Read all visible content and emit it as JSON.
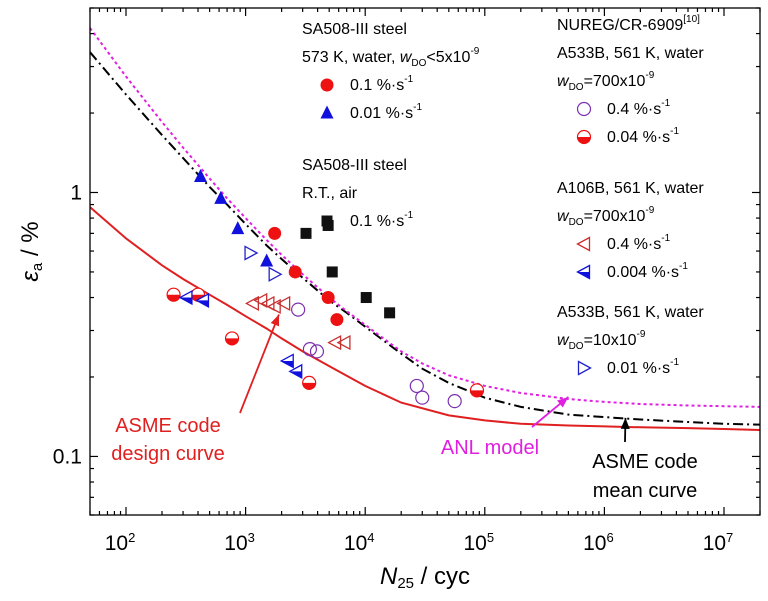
{
  "chart_data": {
    "type": "scatter",
    "xscale": "log",
    "yscale": "log",
    "xlim": [
      50,
      20000000
    ],
    "ylim": [
      0.06,
      5
    ],
    "xlabel": {
      "main": "N",
      "sub": "25",
      "tail": " / cyc"
    },
    "ylabel": {
      "main": "ε",
      "sub": "a",
      "tail": " / %"
    },
    "xticks": [
      {
        "value": 100,
        "base": "10",
        "exp": "2"
      },
      {
        "value": 1000,
        "base": "10",
        "exp": "3"
      },
      {
        "value": 10000,
        "base": "10",
        "exp": "4"
      },
      {
        "value": 100000,
        "base": "10",
        "exp": "5"
      },
      {
        "value": 1000000,
        "base": "10",
        "exp": "6"
      },
      {
        "value": 10000000,
        "base": "10",
        "exp": "7"
      }
    ],
    "yticks": [
      {
        "value": 0.1,
        "label": "0.1"
      },
      {
        "value": 1,
        "label": "1"
      }
    ],
    "curves": [
      {
        "label": "ASME code design curve",
        "color": "#e02020",
        "style": "solid",
        "x": [
          50,
          100,
          200,
          300,
          500,
          700,
          1000,
          1500,
          2000,
          3000,
          5000,
          10000,
          20000,
          50000,
          100000,
          200000,
          500000,
          1000000,
          2000000,
          5000000,
          10000000,
          20000000
        ],
        "y": [
          0.88,
          0.67,
          0.53,
          0.47,
          0.41,
          0.375,
          0.34,
          0.305,
          0.28,
          0.25,
          0.22,
          0.185,
          0.16,
          0.143,
          0.137,
          0.133,
          0.131,
          0.13,
          0.129,
          0.128,
          0.127,
          0.126
        ]
      },
      {
        "label": "ASME code mean curve",
        "color": "#000000",
        "style": "dashdot",
        "x": [
          50,
          100,
          200,
          300,
          500,
          700,
          1000,
          1500,
          2000,
          3000,
          5000,
          7000,
          10000,
          15000,
          20000,
          30000,
          50000,
          100000,
          200000,
          500000,
          1000000,
          2000000,
          5000000,
          10000000,
          20000000
        ],
        "y": [
          3.4,
          2.35,
          1.65,
          1.35,
          1.05,
          0.9,
          0.76,
          0.63,
          0.56,
          0.475,
          0.39,
          0.35,
          0.31,
          0.27,
          0.245,
          0.215,
          0.19,
          0.167,
          0.154,
          0.144,
          0.141,
          0.138,
          0.135,
          0.133,
          0.132
        ]
      },
      {
        "label": "ANL model",
        "color": "#e020e0",
        "style": "dotted",
        "x": [
          50,
          100,
          200,
          300,
          500,
          700,
          1000,
          1500,
          2000,
          3000,
          5000,
          7000,
          10000,
          15000,
          20000,
          30000,
          50000,
          100000,
          200000,
          500000,
          1000000,
          2000000,
          5000000,
          10000000,
          20000000
        ],
        "y": [
          4.2,
          2.75,
          1.85,
          1.48,
          1.13,
          0.95,
          0.8,
          0.66,
          0.58,
          0.49,
          0.4,
          0.355,
          0.315,
          0.275,
          0.25,
          0.225,
          0.203,
          0.185,
          0.174,
          0.165,
          0.161,
          0.158,
          0.156,
          0.155,
          0.154
        ]
      }
    ],
    "series": [
      {
        "name": "0.1 %·s⁻¹",
        "marker": "circle-filled",
        "color": "#ee1111",
        "x": [
          1750,
          2600,
          4900,
          5800
        ],
        "y": [
          0.7,
          0.5,
          0.4,
          0.33
        ]
      },
      {
        "name": "0.01 %·s⁻¹",
        "marker": "triangle-up-filled",
        "color": "#1111dd",
        "x": [
          420,
          620,
          860,
          1500
        ],
        "y": [
          1.15,
          0.95,
          0.73,
          0.55
        ]
      },
      {
        "name": "0.1 %·s⁻¹",
        "marker": "square-filled",
        "color": "#111111",
        "x": [
          3200,
          4900,
          5300,
          10200,
          16000
        ],
        "y": [
          0.7,
          0.75,
          0.5,
          0.4,
          0.35
        ]
      },
      {
        "name": "0.4 %·s⁻¹",
        "marker": "circle-open",
        "color": "#7a30b0",
        "x": [
          2750,
          3450,
          3950,
          27000,
          30000,
          56000
        ],
        "y": [
          0.36,
          0.255,
          0.25,
          0.185,
          0.167,
          0.162
        ]
      },
      {
        "name": "0.04 %·s⁻¹",
        "marker": "circle-half",
        "color": "#ee1111",
        "x": [
          250,
          400,
          770,
          3400,
          86000
        ],
        "y": [
          0.41,
          0.41,
          0.28,
          0.19,
          0.178
        ]
      },
      {
        "name": "0.4 %·s⁻¹",
        "marker": "triangle-left-open",
        "color": "#c83030",
        "x": [
          1150,
          1350,
          1550,
          1750,
          2100,
          5600,
          6700
        ],
        "y": [
          0.38,
          0.39,
          0.38,
          0.37,
          0.38,
          0.27,
          0.27
        ]
      },
      {
        "name": "0.004 %·s⁻¹",
        "marker": "triangle-left-half",
        "color": "#1111dd",
        "x": [
          320,
          440,
          2250,
          2650
        ],
        "y": [
          0.4,
          0.39,
          0.23,
          0.21
        ]
      },
      {
        "name": "0.01 %·s⁻¹",
        "marker": "triangle-right-open",
        "color": "#2222cc",
        "x": [
          1100,
          1750
        ],
        "y": [
          0.59,
          0.49
        ]
      }
    ],
    "legend": {
      "position": "top-right",
      "groups": [
        {
          "lines": [
            {
              "text": "SA508-III steel"
            },
            {
              "parts": [
                {
                  "t": "573 K, water, "
                },
                {
                  "t": "w",
                  "italic": true
                },
                {
                  "t": "DO",
                  "sub": true
                },
                {
                  "t": "<5x10"
                },
                {
                  "t": "-9",
                  "sup": true
                }
              ]
            }
          ],
          "items": [
            {
              "series": 0,
              "parts": [
                {
                  "t": "0.1 %·s"
                },
                {
                  "t": "-1",
                  "sup": true
                }
              ]
            },
            {
              "series": 1,
              "parts": [
                {
                  "t": "0.01 %·s"
                },
                {
                  "t": "-1",
                  "sup": true
                }
              ]
            }
          ]
        },
        {
          "lines": [
            {
              "text": "SA508-III steel"
            },
            {
              "text": "R.T., air"
            }
          ],
          "items": [
            {
              "series": 2,
              "parts": [
                {
                  "t": "0.1 %·s"
                },
                {
                  "t": "-1",
                  "sup": true
                }
              ]
            }
          ]
        },
        {
          "lines": [
            {
              "parts": [
                {
                  "t": "NUREG/CR-6909"
                },
                {
                  "t": "[10]",
                  "sup": true
                }
              ]
            },
            {
              "text": "A533B, 561 K, water"
            },
            {
              "parts": [
                {
                  "t": "w",
                  "italic": true
                },
                {
                  "t": "DO",
                  "sub": true
                },
                {
                  "t": "=700x10"
                },
                {
                  "t": "-9",
                  "sup": true
                }
              ]
            }
          ],
          "items": [
            {
              "series": 3,
              "parts": [
                {
                  "t": "0.4 %·s"
                },
                {
                  "t": "-1",
                  "sup": true
                }
              ]
            },
            {
              "series": 4,
              "parts": [
                {
                  "t": "0.04 %·s"
                },
                {
                  "t": "-1",
                  "sup": true
                }
              ]
            }
          ]
        },
        {
          "lines": [
            {
              "text": "A106B, 561 K, water"
            },
            {
              "parts": [
                {
                  "t": "w",
                  "italic": true
                },
                {
                  "t": "DO",
                  "sub": true
                },
                {
                  "t": "=700x10"
                },
                {
                  "t": "-9",
                  "sup": true
                }
              ]
            }
          ],
          "items": [
            {
              "series": 5,
              "parts": [
                {
                  "t": "0.4 %·s"
                },
                {
                  "t": "-1",
                  "sup": true
                }
              ]
            },
            {
              "series": 6,
              "parts": [
                {
                  "t": "0.004 %·s"
                },
                {
                  "t": "-1",
                  "sup": true
                }
              ]
            }
          ]
        },
        {
          "lines": [
            {
              "text": "A533B, 561 K, water"
            },
            {
              "parts": [
                {
                  "t": "w",
                  "italic": true
                },
                {
                  "t": "DO",
                  "sub": true
                },
                {
                  "t": "=10x10"
                },
                {
                  "t": "-9",
                  "sup": true
                }
              ]
            }
          ],
          "items": [
            {
              "series": 7,
              "parts": [
                {
                  "t": "0.01 %·s"
                },
                {
                  "t": "-1",
                  "sup": true
                }
              ]
            }
          ]
        }
      ]
    },
    "annotations": [
      {
        "lines": [
          "ASME code",
          "design curve"
        ],
        "color": "#e02020",
        "arrow_to": [
          1900,
          0.345
        ]
      },
      {
        "lines": [
          "ANL model"
        ],
        "color": "#e020e0",
        "arrow_to": [
          500000,
          0.168
        ]
      },
      {
        "lines": [
          "ASME code",
          "mean curve"
        ],
        "color": "#000000",
        "arrow_to": [
          1500000,
          0.14
        ]
      }
    ]
  }
}
